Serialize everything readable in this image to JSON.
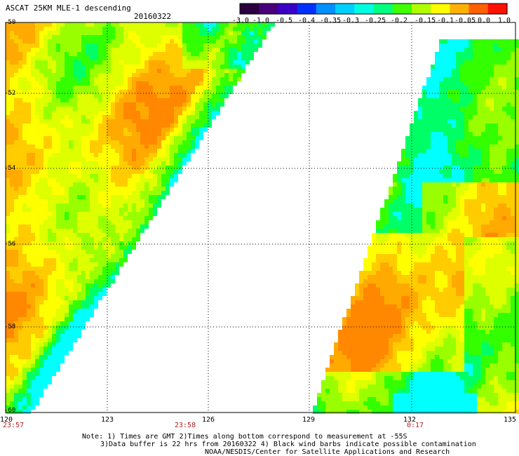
{
  "header": {
    "title": "ASCAT 25KM MLE-1 descending",
    "date": "20160322"
  },
  "colorbar": {
    "tick_labels": [
      "-3.0",
      "-1.0",
      "-0.5",
      "-0.4",
      "-0.35",
      "-0.3",
      "-0.25",
      "-0.2",
      "-0.15",
      "-0.1",
      "-0.05",
      "0.0",
      "1.0"
    ],
    "colors": [
      "#2a0040",
      "#4a007a",
      "#3a00c8",
      "#0030ff",
      "#0090ff",
      "#00d0ff",
      "#00ffe0",
      "#00ff80",
      "#40ff00",
      "#b0ff00",
      "#ffff00",
      "#ffb000",
      "#ff6000",
      "#ff1000"
    ]
  },
  "map": {
    "lat_labels": [
      "-50",
      "-52",
      "-54",
      "-56",
      "-58",
      "-60"
    ],
    "lon_labels": [
      "120",
      "123",
      "126",
      "129",
      "132",
      "135"
    ],
    "times": [
      "23:57",
      "23:58",
      "0:17"
    ],
    "palette": [
      "#00ffff",
      "#00ff66",
      "#33ff00",
      "#99ff00",
      "#ddff00",
      "#ffff00",
      "#ffcc00",
      "#ffaa00",
      "#ff8800"
    ]
  },
  "notes": {
    "line1": "Note: 1) Times are GMT 2)Times along bottom correspond to measurement at -55S",
    "line2": "3)Data buffer is 22 hrs from 20160322 4) Black wind barbs indicate possible contamination",
    "line3": "NOAA/NESDIS/Center for Satellite Applications and Research"
  }
}
